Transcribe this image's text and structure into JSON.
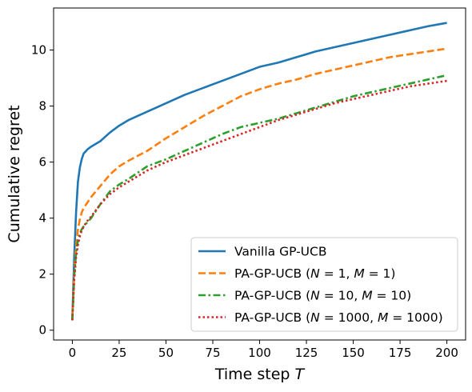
{
  "chart_data": {
    "type": "line",
    "xlabel": "Time step T",
    "ylabel": "Cumulative regret",
    "xlim": [
      -10,
      210
    ],
    "ylim": [
      -0.35,
      11.5
    ],
    "xticks": [
      0,
      25,
      50,
      75,
      100,
      125,
      150,
      175,
      200
    ],
    "yticks": [
      0,
      2,
      4,
      6,
      8,
      10
    ],
    "grid": false,
    "legend_position": "lower-right",
    "x": [
      0,
      1,
      2,
      3,
      4,
      5,
      6,
      8,
      10,
      15,
      20,
      25,
      30,
      40,
      50,
      60,
      70,
      80,
      90,
      100,
      110,
      120,
      130,
      140,
      150,
      160,
      170,
      180,
      190,
      200
    ],
    "series": [
      {
        "name": "Vanilla GP-UCB",
        "color": "#1f77b4",
        "style": "solid",
        "values": [
          0.4,
          2.6,
          4.2,
          5.3,
          5.8,
          6.1,
          6.3,
          6.45,
          6.55,
          6.75,
          7.05,
          7.3,
          7.5,
          7.8,
          8.1,
          8.4,
          8.65,
          8.9,
          9.15,
          9.4,
          9.55,
          9.75,
          9.95,
          10.1,
          10.25,
          10.4,
          10.55,
          10.7,
          10.85,
          10.97
        ]
      },
      {
        "name": "PA-GP-UCB (N = 1, M = 1)",
        "color": "#ff7f0e",
        "style": "dashed",
        "values": [
          0.4,
          2.0,
          3.0,
          3.6,
          3.95,
          4.2,
          4.35,
          4.55,
          4.75,
          5.15,
          5.55,
          5.85,
          6.05,
          6.4,
          6.85,
          7.25,
          7.65,
          8.0,
          8.35,
          8.6,
          8.8,
          8.95,
          9.15,
          9.3,
          9.45,
          9.6,
          9.75,
          9.85,
          9.95,
          10.05
        ]
      },
      {
        "name": "PA-GP-UCB (N = 10, M = 10)",
        "color": "#2ca02c",
        "style": "dashdot",
        "values": [
          0.35,
          1.9,
          2.75,
          3.2,
          3.45,
          3.6,
          3.7,
          3.85,
          4.0,
          4.5,
          4.95,
          5.2,
          5.4,
          5.85,
          6.1,
          6.4,
          6.7,
          7.0,
          7.25,
          7.4,
          7.55,
          7.75,
          7.95,
          8.15,
          8.35,
          8.5,
          8.65,
          8.8,
          8.95,
          9.1
        ]
      },
      {
        "name": "PA-GP-UCB (N = 1000, M = 1000)",
        "color": "#d62728",
        "style": "dotted",
        "values": [
          0.35,
          1.8,
          2.6,
          3.05,
          3.35,
          3.55,
          3.7,
          3.9,
          4.05,
          4.5,
          4.85,
          5.1,
          5.3,
          5.7,
          6.0,
          6.25,
          6.5,
          6.75,
          7.0,
          7.25,
          7.5,
          7.7,
          7.9,
          8.1,
          8.25,
          8.4,
          8.55,
          8.7,
          8.8,
          8.9
        ]
      }
    ],
    "legend": [
      {
        "prefix": "Vanilla GP-UCB",
        "n": "",
        "m": ""
      },
      {
        "prefix": "PA-GP-UCB (",
        "n": "1",
        "m": "1"
      },
      {
        "prefix": "PA-GP-UCB (",
        "n": "10",
        "m": "10"
      },
      {
        "prefix": "PA-GP-UCB (",
        "n": "1000",
        "m": "1000"
      }
    ]
  }
}
